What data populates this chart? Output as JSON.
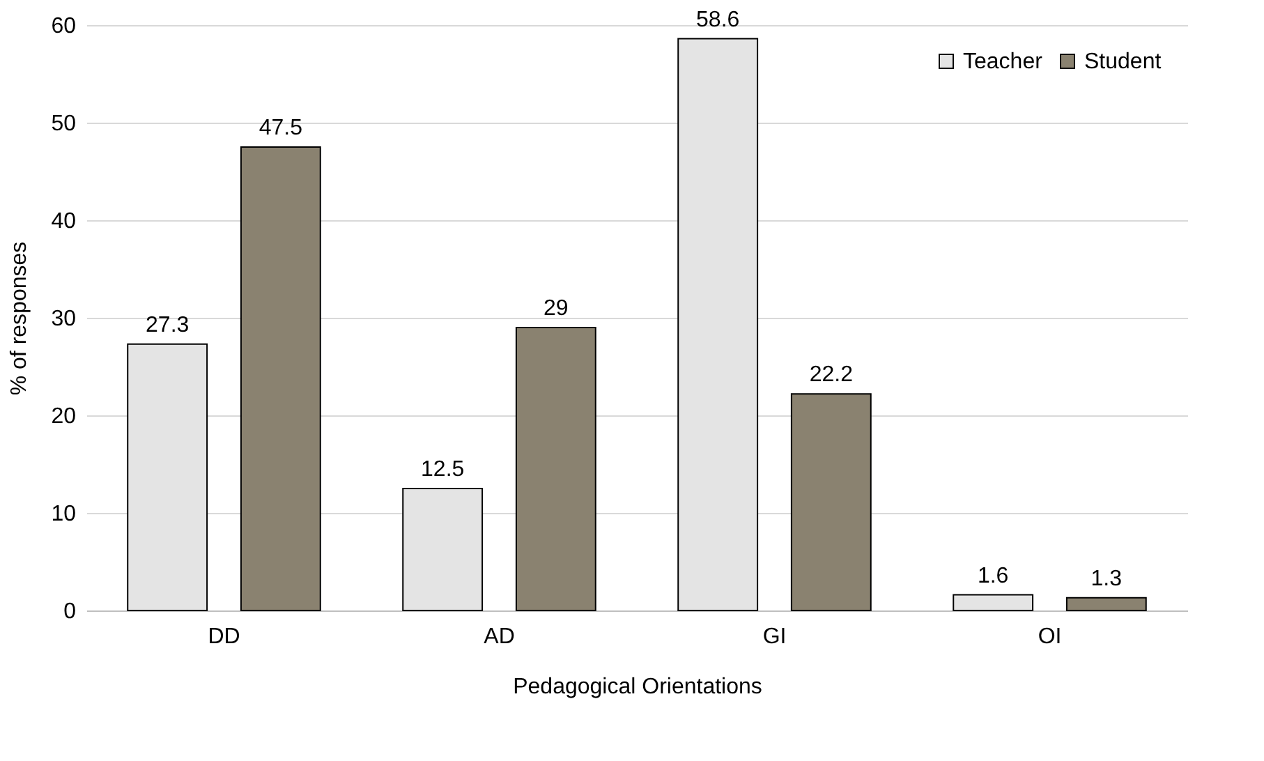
{
  "chart_data": {
    "type": "bar",
    "xlabel": "Pedagogical Orientations",
    "ylabel": "% of responses",
    "categories": [
      "DD",
      "AD",
      "GI",
      "OI"
    ],
    "series": [
      {
        "name": "Teacher",
        "color": "#e4e4e4",
        "values": [
          27.3,
          12.5,
          58.6,
          1.6
        ]
      },
      {
        "name": "Student",
        "color": "#8a8270",
        "values": [
          47.5,
          29,
          22.2,
          1.3
        ]
      }
    ],
    "ylim": [
      0,
      60
    ],
    "yticks": [
      0,
      10,
      20,
      30,
      40,
      50,
      60
    ],
    "grid": "y",
    "legend": "top right",
    "data_labels": true
  }
}
